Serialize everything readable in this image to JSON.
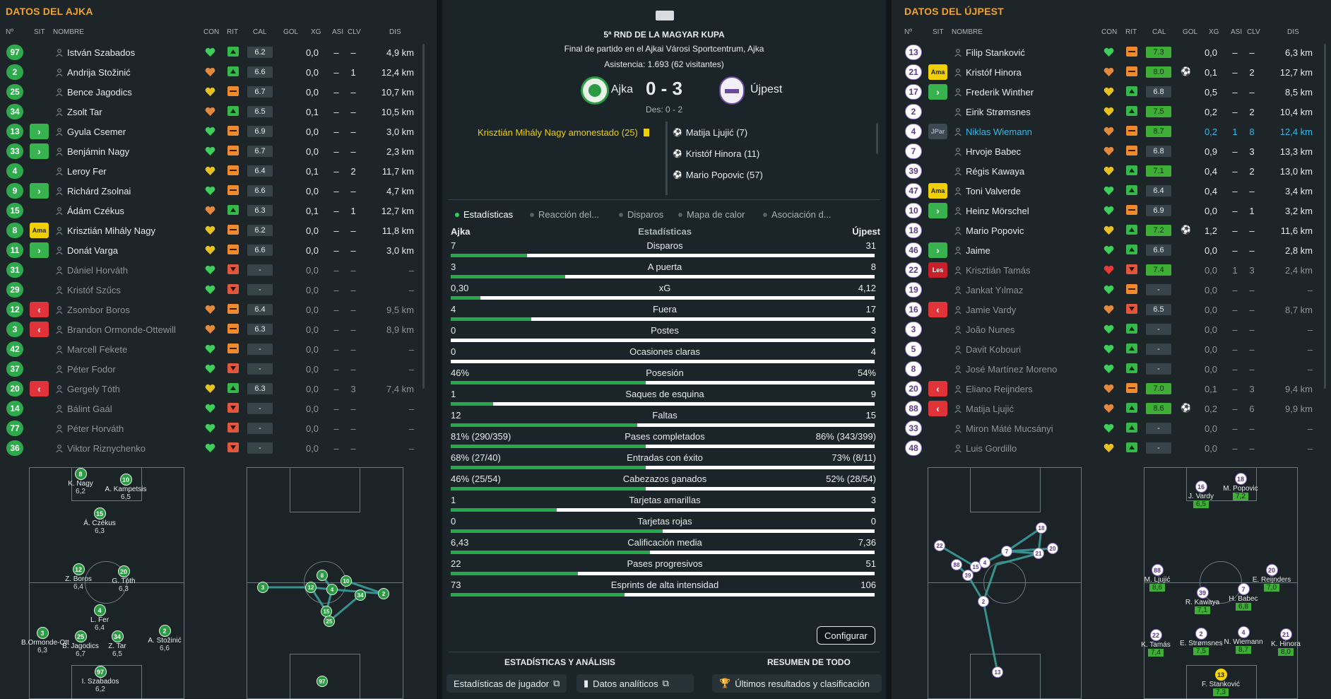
{
  "left": {
    "title": "DATOS DEL AJKA",
    "headers": {
      "num": "Nº",
      "sit": "SIT",
      "name": "NOMBRE",
      "con": "CON",
      "rit": "RIT",
      "cal": "CAL",
      "gol": "GOL",
      "xg": "XG",
      "asi": "ASI",
      "clv": "CLV",
      "dis": "DIS"
    },
    "players": [
      {
        "num": "97",
        "sit": "",
        "name": "István Szabados",
        "con": "green",
        "rit": "up",
        "cal": "6.2",
        "gol": "",
        "xg": "0,0",
        "asi": "–",
        "clv": "–",
        "dis": "4,9 km",
        "dim": false
      },
      {
        "num": "2",
        "sit": "",
        "name": "Andrija Stožinić",
        "con": "orange",
        "rit": "up",
        "cal": "6.6",
        "gol": "",
        "xg": "0,0",
        "asi": "–",
        "clv": "1",
        "dis": "12,4 km",
        "dim": false
      },
      {
        "num": "25",
        "sit": "",
        "name": "Bence Jagodics",
        "con": "yellow",
        "rit": "flat",
        "cal": "6.7",
        "gol": "",
        "xg": "0,0",
        "asi": "–",
        "clv": "–",
        "dis": "10,7 km",
        "dim": false
      },
      {
        "num": "34",
        "sit": "",
        "name": "Zsolt Tar",
        "con": "orange",
        "rit": "up",
        "cal": "6.5",
        "gol": "",
        "xg": "0,1",
        "asi": "–",
        "clv": "–",
        "dis": "10,5 km",
        "dim": false
      },
      {
        "num": "13",
        "sit": "in",
        "name": "Gyula Csemer",
        "con": "green",
        "rit": "flat",
        "cal": "6.9",
        "gol": "",
        "xg": "0,0",
        "asi": "–",
        "clv": "–",
        "dis": "3,0 km",
        "dim": false
      },
      {
        "num": "33",
        "sit": "in",
        "name": "Benjámin Nagy",
        "con": "green",
        "rit": "flat",
        "cal": "6.7",
        "gol": "",
        "xg": "0,0",
        "asi": "–",
        "clv": "–",
        "dis": "2,3 km",
        "dim": false
      },
      {
        "num": "4",
        "sit": "",
        "name": "Leroy Fer",
        "con": "yellow",
        "rit": "flat",
        "cal": "6.4",
        "gol": "",
        "xg": "0,1",
        "asi": "–",
        "clv": "2",
        "dis": "11,7 km",
        "dim": false
      },
      {
        "num": "9",
        "sit": "in",
        "name": "Richárd Zsolnai",
        "con": "green",
        "rit": "flat",
        "cal": "6.6",
        "gol": "",
        "xg": "0,0",
        "asi": "–",
        "clv": "–",
        "dis": "4,7 km",
        "dim": false
      },
      {
        "num": "15",
        "sit": "",
        "name": "Ádám Czékus",
        "con": "orange",
        "rit": "up",
        "cal": "6.3",
        "gol": "",
        "xg": "0,1",
        "asi": "–",
        "clv": "1",
        "dis": "12,7 km",
        "dim": false
      },
      {
        "num": "8",
        "sit": "ama",
        "name": "Krisztián Mihály Nagy",
        "con": "yellow",
        "rit": "flat",
        "cal": "6.2",
        "gol": "",
        "xg": "0,0",
        "asi": "–",
        "clv": "–",
        "dis": "11,8 km",
        "dim": false
      },
      {
        "num": "11",
        "sit": "in",
        "name": "Donát Varga",
        "con": "yellow",
        "rit": "flat",
        "cal": "6.6",
        "gol": "",
        "xg": "0,0",
        "asi": "–",
        "clv": "–",
        "dis": "3,0 km",
        "dim": false
      },
      {
        "num": "31",
        "sit": "",
        "name": "Dániel Horváth",
        "con": "green",
        "rit": "down",
        "cal": "-",
        "gol": "",
        "xg": "0,0",
        "asi": "–",
        "clv": "–",
        "dis": "–",
        "dim": true
      },
      {
        "num": "29",
        "sit": "",
        "name": "Kristóf Szűcs",
        "con": "green",
        "rit": "down",
        "cal": "-",
        "gol": "",
        "xg": "0,0",
        "asi": "–",
        "clv": "–",
        "dis": "–",
        "dim": true
      },
      {
        "num": "12",
        "sit": "out",
        "name": "Zsombor Boros",
        "con": "orange",
        "rit": "flat",
        "cal": "6.4",
        "gol": "",
        "xg": "0,0",
        "asi": "–",
        "clv": "–",
        "dis": "9,5 km",
        "dim": true
      },
      {
        "num": "3",
        "sit": "out",
        "name": "Brandon Ormonde-Ottewill",
        "con": "orange",
        "rit": "flat",
        "cal": "6.3",
        "gol": "",
        "xg": "0,0",
        "asi": "–",
        "clv": "–",
        "dis": "8,9 km",
        "dim": true
      },
      {
        "num": "42",
        "sit": "",
        "name": "Marcell Fekete",
        "con": "green",
        "rit": "flat",
        "cal": "-",
        "gol": "",
        "xg": "0,0",
        "asi": "–",
        "clv": "–",
        "dis": "–",
        "dim": true
      },
      {
        "num": "37",
        "sit": "",
        "name": "Péter Fodor",
        "con": "green",
        "rit": "down",
        "cal": "-",
        "gol": "",
        "xg": "0,0",
        "asi": "–",
        "clv": "–",
        "dis": "–",
        "dim": true
      },
      {
        "num": "20",
        "sit": "out",
        "name": "Gergely Tóth",
        "con": "yellow",
        "rit": "up",
        "cal": "6.3",
        "gol": "",
        "xg": "0,0",
        "asi": "–",
        "clv": "3",
        "dis": "7,4 km",
        "dim": true
      },
      {
        "num": "14",
        "sit": "",
        "name": "Bálint Gaál",
        "con": "green",
        "rit": "down",
        "cal": "-",
        "gol": "",
        "xg": "0,0",
        "asi": "–",
        "clv": "–",
        "dis": "–",
        "dim": true
      },
      {
        "num": "77",
        "sit": "",
        "name": "Péter Horváth",
        "con": "green",
        "rit": "down",
        "cal": "-",
        "gol": "",
        "xg": "0,0",
        "asi": "–",
        "clv": "–",
        "dis": "–",
        "dim": true
      },
      {
        "num": "36",
        "sit": "",
        "name": "Viktor Riznychenko",
        "con": "green",
        "rit": "down",
        "cal": "-",
        "gol": "",
        "xg": "0,0",
        "asi": "–",
        "clv": "–",
        "dis": "–",
        "dim": true
      }
    ]
  },
  "right": {
    "title": "DATOS DEL ÚJPEST",
    "headers": {
      "num": "Nº",
      "sit": "SIT",
      "name": "NOMBRE",
      "con": "CON",
      "rit": "RIT",
      "cal": "CAL",
      "gol": "GOL",
      "xg": "XG",
      "asi": "ASI",
      "clv": "CLV",
      "dis": "DIS"
    },
    "players": [
      {
        "num": "13",
        "sit": "",
        "name": "Filip Stanković",
        "con": "green",
        "rit": "flat",
        "cal": "7.3",
        "gol": "",
        "xg": "0,0",
        "asi": "–",
        "clv": "–",
        "dis": "6,3 km",
        "dim": false,
        "good": true
      },
      {
        "num": "21",
        "sit": "ama",
        "name": "Kristóf Hinora",
        "con": "orange",
        "rit": "flat",
        "cal": "8.0",
        "gol": "⚽",
        "xg": "0,1",
        "asi": "–",
        "clv": "2",
        "dis": "12,7 km",
        "dim": false,
        "good": true
      },
      {
        "num": "17",
        "sit": "in",
        "name": "Frederik Winther",
        "con": "yellow",
        "rit": "up",
        "cal": "6.8",
        "gol": "",
        "xg": "0,5",
        "asi": "–",
        "clv": "–",
        "dis": "8,5 km",
        "dim": false,
        "good": false
      },
      {
        "num": "2",
        "sit": "",
        "name": "Eirik Strømsnes",
        "con": "yellow",
        "rit": "up",
        "cal": "7.5",
        "gol": "",
        "xg": "0,2",
        "asi": "–",
        "clv": "2",
        "dis": "10,4 km",
        "dim": false,
        "good": true
      },
      {
        "num": "4",
        "sit": "jpar",
        "name": "Niklas Wiemann",
        "con": "orange",
        "rit": "flat",
        "cal": "8.7",
        "gol": "",
        "xg": "0,2",
        "asi": "1",
        "clv": "8",
        "dis": "12,4 km",
        "dim": false,
        "good": true,
        "hl": true
      },
      {
        "num": "7",
        "sit": "",
        "name": "Hrvoje Babec",
        "con": "orange",
        "rit": "flat",
        "cal": "6.8",
        "gol": "",
        "xg": "0,9",
        "asi": "–",
        "clv": "3",
        "dis": "13,3 km",
        "dim": false,
        "good": false
      },
      {
        "num": "39",
        "sit": "",
        "name": "Régis Kawaya",
        "con": "yellow",
        "rit": "up",
        "cal": "7.1",
        "gol": "",
        "xg": "0,4",
        "asi": "–",
        "clv": "2",
        "dis": "13,0 km",
        "dim": false,
        "good": true
      },
      {
        "num": "47",
        "sit": "ama",
        "name": "Toni Valverde",
        "con": "green",
        "rit": "up",
        "cal": "6.4",
        "gol": "",
        "xg": "0,4",
        "asi": "–",
        "clv": "–",
        "dis": "3,4 km",
        "dim": false,
        "good": false
      },
      {
        "num": "10",
        "sit": "in",
        "name": "Heinz Mörschel",
        "con": "green",
        "rit": "flat",
        "cal": "6.9",
        "gol": "",
        "xg": "0,0",
        "asi": "–",
        "clv": "1",
        "dis": "3,2 km",
        "dim": false,
        "good": false
      },
      {
        "num": "18",
        "sit": "",
        "name": "Mario Popovic",
        "con": "yellow",
        "rit": "up",
        "cal": "7.2",
        "gol": "⚽",
        "xg": "1,2",
        "asi": "–",
        "clv": "–",
        "dis": "11,6 km",
        "dim": false,
        "good": true
      },
      {
        "num": "46",
        "sit": "in",
        "name": "Jaime",
        "con": "green",
        "rit": "up",
        "cal": "6.6",
        "gol": "",
        "xg": "0,0",
        "asi": "–",
        "clv": "–",
        "dis": "2,8 km",
        "dim": false,
        "good": false
      },
      {
        "num": "22",
        "sit": "les",
        "name": "Krisztián Tamás",
        "con": "red",
        "rit": "down",
        "cal": "7.4",
        "gol": "",
        "xg": "0,0",
        "asi": "1",
        "clv": "3",
        "dis": "2,4 km",
        "dim": true,
        "good": true
      },
      {
        "num": "19",
        "sit": "",
        "name": "Jankat Yılmaz",
        "con": "green",
        "rit": "flat",
        "cal": "-",
        "gol": "",
        "xg": "0,0",
        "asi": "–",
        "clv": "–",
        "dis": "–",
        "dim": true,
        "good": false
      },
      {
        "num": "16",
        "sit": "out",
        "name": "Jamie Vardy",
        "con": "orange",
        "rit": "down",
        "cal": "6.5",
        "gol": "",
        "xg": "0,0",
        "asi": "–",
        "clv": "–",
        "dis": "8,7 km",
        "dim": true,
        "good": false
      },
      {
        "num": "3",
        "sit": "",
        "name": "João Nunes",
        "con": "green",
        "rit": "up",
        "cal": "-",
        "gol": "",
        "xg": "0,0",
        "asi": "–",
        "clv": "–",
        "dis": "–",
        "dim": true,
        "good": false
      },
      {
        "num": "5",
        "sit": "",
        "name": "Davit Kobouri",
        "con": "green",
        "rit": "up",
        "cal": "-",
        "gol": "",
        "xg": "0,0",
        "asi": "–",
        "clv": "–",
        "dis": "–",
        "dim": true,
        "good": false
      },
      {
        "num": "8",
        "sit": "",
        "name": "José Martínez Moreno",
        "con": "green",
        "rit": "up",
        "cal": "-",
        "gol": "",
        "xg": "0,0",
        "asi": "–",
        "clv": "–",
        "dis": "–",
        "dim": true,
        "good": false
      },
      {
        "num": "20",
        "sit": "out",
        "name": "Eliano Reijnders",
        "con": "orange",
        "rit": "flat",
        "cal": "7.0",
        "gol": "",
        "xg": "0,1",
        "asi": "–",
        "clv": "3",
        "dis": "9,4 km",
        "dim": true,
        "good": true
      },
      {
        "num": "88",
        "sit": "out",
        "name": "Matija Ljujić",
        "con": "orange",
        "rit": "up",
        "cal": "8.6",
        "gol": "⚽",
        "xg": "0,2",
        "asi": "–",
        "clv": "6",
        "dis": "9,9 km",
        "dim": true,
        "good": true
      },
      {
        "num": "33",
        "sit": "",
        "name": "Miron Máté Mucsányi",
        "con": "green",
        "rit": "up",
        "cal": "-",
        "gol": "",
        "xg": "0,0",
        "asi": "–",
        "clv": "–",
        "dis": "–",
        "dim": true,
        "good": false
      },
      {
        "num": "48",
        "sit": "",
        "name": "Luis Gordillo",
        "con": "yellow",
        "rit": "up",
        "cal": "-",
        "gol": "",
        "xg": "0,0",
        "asi": "–",
        "clv": "–",
        "dis": "–",
        "dim": true,
        "good": false
      }
    ]
  },
  "match": {
    "competition": "5ª RND DE LA MAGYAR KUPA",
    "venue": "Final de partido en el Ajkai Városi Sportcentrum, Ajka",
    "attendance": "Asistencia: 1.693 (62 visitantes)",
    "home": "Ajka",
    "away": "Újpest",
    "score": "0 - 3",
    "sub_score": "Des: 0 - 2",
    "home_events": [
      "Krisztián Mihály Nagy amonestado (25)"
    ],
    "away_events": [
      "Matija Ljujić (7)",
      "Kristóf Hinora (11)",
      "Mario Popovic (57)"
    ]
  },
  "tabs": [
    "Estadísticas",
    "Reacción del...",
    "Disparos",
    "Mapa de calor",
    "Asociación d..."
  ],
  "stats_header": {
    "home": "Ajka",
    "title": "Estadísticas",
    "away": "Újpest"
  },
  "stats": [
    {
      "label": "Disparos",
      "home": "7",
      "away": "31",
      "ratio": 0.18
    },
    {
      "label": "A puerta",
      "home": "3",
      "away": "8",
      "ratio": 0.27
    },
    {
      "label": "xG",
      "home": "0,30",
      "away": "4,12",
      "ratio": 0.07
    },
    {
      "label": "Fuera",
      "home": "4",
      "away": "17",
      "ratio": 0.19
    },
    {
      "label": "Postes",
      "home": "0",
      "away": "3",
      "ratio": 0.0
    },
    {
      "label": "Ocasiones claras",
      "home": "0",
      "away": "4",
      "ratio": 0.0
    },
    {
      "label": "Posesión",
      "home": "46%",
      "away": "54%",
      "ratio": 0.46
    },
    {
      "label": "Saques de esquina",
      "home": "1",
      "away": "9",
      "ratio": 0.1
    },
    {
      "label": "Faltas",
      "home": "12",
      "away": "15",
      "ratio": 0.44
    },
    {
      "label": "Pases completados",
      "home": "81% (290/359)",
      "away": "86% (343/399)",
      "ratio": 0.46
    },
    {
      "label": "Entradas con éxito",
      "home": "68% (27/40)",
      "away": "73% (8/11)",
      "ratio": 0.46
    },
    {
      "label": "Cabezazos ganados",
      "home": "46% (25/54)",
      "away": "52% (28/54)",
      "ratio": 0.46
    },
    {
      "label": "Tarjetas amarillas",
      "home": "1",
      "away": "3",
      "ratio": 0.25
    },
    {
      "label": "Tarjetas rojas",
      "home": "0",
      "away": "0",
      "ratio": 0.5
    },
    {
      "label": "Calificación media",
      "home": "6,43",
      "away": "7,36",
      "ratio": 0.47
    },
    {
      "label": "Pases progresivos",
      "home": "22",
      "away": "51",
      "ratio": 0.3
    },
    {
      "label": "Esprints de alta intensidad",
      "home": "73",
      "away": "106",
      "ratio": 0.41
    }
  ],
  "buttons": {
    "configure": "Configurar",
    "section_left": "ESTADÍSTICAS Y ANÁLISIS",
    "section_right": "RESUMEN DE TODO",
    "player_stats": "Estadísticas de jugador",
    "analytics": "Datos analíticos",
    "results": "Últimos resultados y clasificación"
  },
  "formation_left": [
    {
      "num": "8",
      "name": "K. Nagy",
      "rating": "6,2"
    },
    {
      "num": "10",
      "name": "A. Kampetsis",
      "rating": "6,5"
    },
    {
      "num": "15",
      "name": "Á. Czékus",
      "rating": "6,3"
    },
    {
      "num": "12",
      "name": "Z. Boros",
      "rating": "6,4"
    },
    {
      "num": "20",
      "name": "G. Tóth",
      "rating": "6,3"
    },
    {
      "num": "4",
      "name": "L. Fer",
      "rating": "6,4"
    },
    {
      "num": "3",
      "name": "B.Ormonde-Ott",
      "rating": "6,3"
    },
    {
      "num": "25",
      "name": "B. Jagodics",
      "rating": "6,7"
    },
    {
      "num": "34",
      "name": "Z. Tar",
      "rating": "6,5"
    },
    {
      "num": "2",
      "name": "A. Stožinić",
      "rating": "6,6"
    },
    {
      "num": "97",
      "name": "I. Szabados",
      "rating": "6,2"
    }
  ],
  "formation_right": [
    {
      "num": "16",
      "name": "J. Vardy",
      "rating": "6,5"
    },
    {
      "num": "18",
      "name": "M. Popovic",
      "rating": "7,2"
    },
    {
      "num": "88",
      "name": "M. Ljujić",
      "rating": "8,6"
    },
    {
      "num": "20",
      "name": "E. Reijnders",
      "rating": "7,0"
    },
    {
      "num": "39",
      "name": "R. Kawaya",
      "rating": "7,1"
    },
    {
      "num": "7",
      "name": "H. Babec",
      "rating": "6,8"
    },
    {
      "num": "22",
      "name": "K. Tamás",
      "rating": "7,4"
    },
    {
      "num": "2",
      "name": "E. Strømsnes",
      "rating": "7,5"
    },
    {
      "num": "4",
      "name": "N. Wiemann",
      "rating": "8,7"
    },
    {
      "num": "21",
      "name": "K. Hinora",
      "rating": "8,0"
    },
    {
      "num": "13",
      "name": "F. Stanković",
      "rating": "7,3"
    }
  ],
  "pass_map_left": [
    "3",
    "12",
    "8",
    "4",
    "10",
    "2",
    "15",
    "25",
    "34",
    "97"
  ],
  "pass_map_right": [
    "22",
    "88",
    "15",
    "39",
    "4",
    "7",
    "21",
    "20",
    "18",
    "2",
    "13"
  ],
  "colors": {
    "accent": "#f0a42c",
    "green": "#2eaa4c",
    "red": "#e0343a",
    "yellow": "#f0d000",
    "blue": "#38b8e8"
  }
}
